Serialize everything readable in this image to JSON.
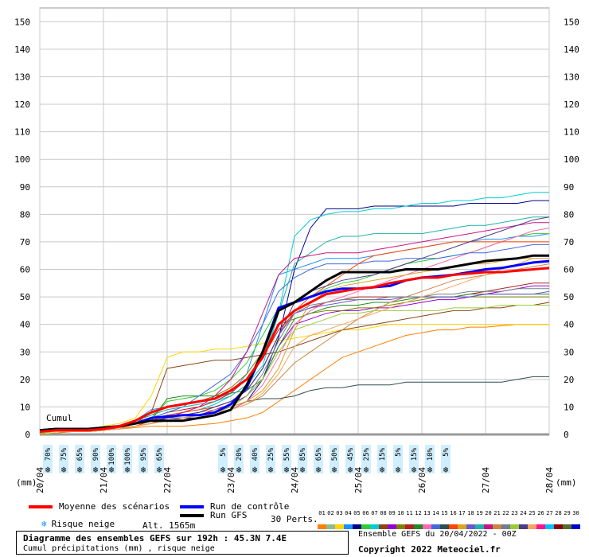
{
  "chart_data": {
    "type": "line",
    "title": "Diagramme des ensembles GEFS sur 192h : 45.3N 7.4E",
    "subtitle": "Cumul précipitations (mm) , risque neige",
    "ylabel": "(mm)",
    "ylim": [
      0,
      155
    ],
    "yticks": [
      0,
      10,
      20,
      30,
      40,
      50,
      60,
      70,
      80,
      90,
      100,
      110,
      120,
      130,
      140,
      150
    ],
    "x_unit_hours": true,
    "xlim": [
      0,
      192
    ],
    "xtick_labels": [
      {
        "label": "20/04",
        "x": 0
      },
      {
        "label": "21/04",
        "x": 24
      },
      {
        "label": "22/04",
        "x": 48
      },
      {
        "label": "23/04",
        "x": 72
      },
      {
        "label": "24/04",
        "x": 96
      },
      {
        "label": "25/04",
        "x": 120
      },
      {
        "label": "26/04",
        "x": 144
      },
      {
        "label": "27/04",
        "x": 168
      },
      {
        "label": "28/04",
        "x": 192
      }
    ],
    "cumul_label": "Cumul",
    "grid": true,
    "x": [
      0,
      6,
      12,
      18,
      24,
      30,
      36,
      42,
      48,
      54,
      60,
      66,
      72,
      78,
      84,
      90,
      96,
      102,
      108,
      114,
      120,
      126,
      132,
      138,
      144,
      150,
      156,
      162,
      168,
      174,
      180,
      186,
      192
    ],
    "series": [
      {
        "name": "Moyenne des scénarios",
        "color": "#ff0000",
        "width": 3,
        "values": [
          1,
          1.5,
          1.5,
          1.5,
          2,
          3,
          5,
          8,
          10,
          11,
          12,
          13,
          16,
          20,
          28,
          40,
          45,
          48,
          51,
          52,
          53,
          53.5,
          55,
          56,
          57,
          57,
          58,
          58.5,
          59,
          59,
          59.5,
          60,
          60.5
        ]
      },
      {
        "name": "Run de contrôle",
        "color": "#0000ff",
        "width": 3,
        "values": [
          1.5,
          2,
          2,
          2,
          2.5,
          3,
          4,
          6,
          6.5,
          7,
          7,
          8,
          11,
          17,
          30,
          46,
          48,
          50,
          52,
          53,
          53,
          53.5,
          54,
          56,
          57,
          57.5,
          58,
          59,
          60,
          60.5,
          61.5,
          62.5,
          63
        ]
      },
      {
        "name": "Run GFS",
        "color": "#000000",
        "width": 3,
        "values": [
          1.5,
          2,
          2,
          2,
          2.5,
          3,
          4,
          5,
          5,
          5,
          6,
          7,
          9,
          18,
          30,
          45,
          48,
          52,
          56,
          59,
          59,
          59,
          59,
          60,
          60,
          60,
          61,
          62,
          63,
          63.5,
          64,
          65,
          65
        ]
      }
    ],
    "members": [
      {
        "color": "#ff7f00",
        "values": [
          0,
          0.5,
          1,
          1.5,
          2,
          2,
          2.5,
          3,
          3,
          3,
          3.5,
          4,
          5,
          6,
          8,
          12,
          16,
          20,
          24,
          28,
          30,
          32,
          34,
          36,
          37,
          38,
          38,
          39,
          39,
          39.5,
          40,
          40,
          40
        ]
      },
      {
        "color": "#ffd700",
        "values": [
          0,
          0.5,
          1,
          2,
          3,
          4,
          6,
          14,
          28,
          30,
          30,
          31,
          31,
          32,
          33,
          34,
          35,
          36,
          37,
          38,
          38,
          39,
          40,
          40,
          40,
          40,
          40,
          40,
          40,
          40,
          40,
          40,
          40
        ]
      },
      {
        "color": "#1e90ff",
        "values": [
          1,
          2,
          2,
          2,
          2,
          3,
          5,
          9,
          10,
          11,
          12,
          13,
          15,
          22,
          40,
          58,
          60,
          62,
          64,
          64,
          64,
          65,
          66,
          67,
          68,
          69,
          70,
          70,
          71,
          71,
          72,
          72,
          73
        ]
      },
      {
        "color": "#00008b",
        "values": [
          1,
          2,
          2,
          2,
          2,
          3,
          4,
          5,
          6,
          6,
          6,
          7,
          9,
          12,
          20,
          35,
          60,
          75,
          82,
          82,
          82,
          83,
          83,
          83,
          83,
          83,
          83,
          84,
          84,
          84,
          84,
          85,
          85
        ]
      },
      {
        "color": "#32cd32",
        "values": [
          1,
          1,
          1,
          1,
          2,
          3,
          4,
          6,
          12,
          13,
          14,
          16,
          20,
          26,
          36,
          46,
          48,
          50,
          53,
          55,
          56,
          58,
          60,
          62,
          63,
          64,
          65,
          66,
          68,
          70,
          72,
          73,
          73
        ]
      },
      {
        "color": "#00ced1",
        "values": [
          1,
          1,
          1.5,
          2,
          2,
          3,
          4,
          6,
          7,
          8,
          9,
          11,
          14,
          18,
          25,
          44,
          72,
          78,
          80,
          81,
          81,
          82,
          82,
          83,
          84,
          84,
          85,
          85,
          86,
          86,
          87,
          88,
          88
        ]
      },
      {
        "color": "#8b4513",
        "values": [
          1,
          1,
          1,
          1,
          2,
          3,
          4,
          8,
          24,
          25,
          26,
          27,
          27,
          28,
          29,
          30,
          32,
          34,
          36,
          38,
          39,
          40,
          41,
          42,
          43,
          44,
          45,
          45,
          46,
          46,
          47,
          47,
          48
        ]
      },
      {
        "color": "#9400d3",
        "values": [
          1,
          1,
          1,
          1.5,
          2,
          2,
          3,
          4,
          5,
          6,
          7,
          9,
          11,
          14,
          20,
          32,
          40,
          42,
          44,
          45,
          45,
          46,
          46,
          47,
          48,
          49,
          49,
          50,
          51,
          52,
          53,
          54,
          54
        ]
      },
      {
        "color": "#808000",
        "values": [
          1,
          1,
          1,
          1.5,
          2,
          3,
          5,
          7,
          10,
          11,
          12,
          14,
          17,
          22,
          30,
          40,
          42,
          44,
          45,
          45,
          46,
          46,
          47,
          48,
          49,
          50,
          50,
          50,
          50,
          50,
          50,
          50,
          50
        ]
      },
      {
        "color": "#b22222",
        "values": [
          1,
          1,
          1,
          1,
          2,
          3,
          4,
          6,
          8,
          9,
          10,
          12,
          15,
          20,
          28,
          38,
          44,
          46,
          48,
          49,
          50,
          50,
          50,
          50,
          50,
          50,
          50,
          51,
          52,
          53,
          54,
          55,
          55
        ]
      },
      {
        "color": "#228b22",
        "values": [
          0.5,
          1,
          1,
          1,
          1.5,
          2,
          3,
          5,
          13,
          14,
          14,
          14,
          15,
          16,
          20,
          32,
          42,
          44,
          46,
          47,
          47,
          48,
          48,
          49,
          50,
          50,
          50,
          51,
          51,
          51,
          51,
          51,
          51
        ]
      },
      {
        "color": "#ff69b4",
        "values": [
          1,
          1,
          1,
          1,
          1.5,
          2,
          3,
          4,
          5,
          6,
          7,
          8,
          9,
          12,
          18,
          28,
          40,
          45,
          48,
          50,
          52,
          54,
          56,
          58,
          60,
          62,
          64,
          66,
          68,
          70,
          72,
          74,
          75
        ]
      },
      {
        "color": "#4169e1",
        "values": [
          1,
          1,
          1.5,
          2,
          2,
          3,
          4,
          6,
          8,
          10,
          14,
          18,
          22,
          30,
          40,
          52,
          57,
          60,
          62,
          62,
          62,
          63,
          63,
          64,
          64,
          64,
          65,
          66,
          66,
          67,
          68,
          69,
          69
        ]
      },
      {
        "color": "#2f4f4f",
        "values": [
          1,
          1,
          1,
          1,
          1.5,
          2,
          3,
          4,
          5,
          6,
          7,
          8,
          10,
          12,
          13,
          13,
          14,
          16,
          17,
          17,
          18,
          18,
          18,
          19,
          19,
          19,
          19,
          19,
          19,
          19,
          20,
          21,
          21
        ]
      },
      {
        "color": "#ff4500",
        "values": [
          1,
          1,
          1,
          1.5,
          2,
          2.5,
          3,
          5,
          7,
          8,
          9,
          10,
          12,
          16,
          24,
          36,
          45,
          50,
          54,
          58,
          62,
          65,
          66,
          67,
          68,
          69,
          70,
          70,
          70,
          70,
          70,
          70,
          70
        ]
      },
      {
        "color": "#daa520",
        "values": [
          0.5,
          1,
          1,
          1,
          1.5,
          2,
          3,
          4,
          6,
          7,
          8,
          9,
          10,
          12,
          16,
          24,
          38,
          48,
          52,
          54,
          55,
          56,
          57,
          58,
          59,
          60,
          61,
          62,
          62,
          63,
          64,
          64,
          64
        ]
      },
      {
        "color": "#6a5acd",
        "values": [
          1,
          1,
          1,
          1.5,
          2,
          3,
          4,
          5,
          6,
          7,
          8,
          10,
          12,
          16,
          24,
          36,
          44,
          46,
          47,
          48,
          49,
          49,
          49,
          50,
          50,
          50,
          50,
          50,
          51,
          51,
          51,
          51,
          52
        ]
      },
      {
        "color": "#20b2aa",
        "values": [
          1,
          1,
          1,
          1,
          2,
          3,
          5,
          7,
          9,
          10,
          11,
          12,
          14,
          18,
          28,
          44,
          62,
          66,
          70,
          72,
          72,
          73,
          73,
          73,
          73,
          74,
          75,
          76,
          76,
          77,
          78,
          79,
          79
        ]
      },
      {
        "color": "#c71585",
        "values": [
          1,
          1,
          1,
          1,
          1.5,
          2,
          3,
          4,
          6,
          8,
          10,
          14,
          20,
          30,
          44,
          58,
          64,
          65,
          66,
          66,
          66,
          67,
          68,
          69,
          70,
          71,
          72,
          73,
          74,
          75,
          76,
          77,
          77
        ]
      },
      {
        "color": "#cd853f",
        "values": [
          0,
          0.5,
          1,
          1,
          1.5,
          2,
          3,
          4,
          5,
          6,
          7,
          8,
          9,
          11,
          14,
          20,
          26,
          30,
          34,
          38,
          42,
          45,
          48,
          50,
          52,
          54,
          56,
          57,
          58,
          59,
          60,
          61,
          62
        ]
      },
      {
        "color": "#708090",
        "values": [
          1,
          1,
          1,
          1,
          1.5,
          2,
          3,
          4,
          5,
          6,
          7,
          8,
          10,
          14,
          22,
          34,
          44,
          47,
          48,
          49,
          49,
          49,
          50,
          50,
          50,
          51,
          51,
          52,
          52,
          52,
          53,
          53,
          53
        ]
      },
      {
        "color": "#9acd32",
        "values": [
          0.5,
          1,
          1,
          1,
          1.5,
          2,
          3,
          4,
          5,
          6,
          7,
          8,
          10,
          14,
          20,
          30,
          38,
          40,
          42,
          44,
          44,
          45,
          45,
          45,
          45,
          45,
          46,
          46,
          46,
          47,
          47,
          47,
          47
        ]
      },
      {
        "color": "#483d8b",
        "values": [
          1,
          1,
          1,
          1,
          2,
          3,
          4,
          5,
          6,
          7,
          8,
          10,
          12,
          16,
          24,
          36,
          48,
          52,
          54,
          56,
          57,
          58,
          60,
          62,
          64,
          66,
          68,
          70,
          72,
          74,
          76,
          78,
          79
        ]
      },
      {
        "color": "#f4a460",
        "values": [
          1,
          1,
          1,
          1,
          1.5,
          2,
          3,
          4,
          5,
          6,
          7,
          8,
          9,
          11,
          15,
          22,
          32,
          36,
          38,
          40,
          42,
          44,
          46,
          48,
          50,
          52,
          54,
          56,
          58,
          60,
          62,
          64,
          64
        ]
      }
    ],
    "snow_risk": [
      {
        "x": 3,
        "pct": "70%"
      },
      {
        "x": 9,
        "pct": "75%"
      },
      {
        "x": 15,
        "pct": "65%"
      },
      {
        "x": 21,
        "pct": "90%"
      },
      {
        "x": 27,
        "pct": "100%"
      },
      {
        "x": 33,
        "pct": "100%"
      },
      {
        "x": 39,
        "pct": "95%"
      },
      {
        "x": 45,
        "pct": "65%"
      },
      {
        "x": 69,
        "pct": "5%"
      },
      {
        "x": 75,
        "pct": "20%"
      },
      {
        "x": 81,
        "pct": "40%"
      },
      {
        "x": 87,
        "pct": "25%"
      },
      {
        "x": 93,
        "pct": "55%"
      },
      {
        "x": 99,
        "pct": "85%"
      },
      {
        "x": 105,
        "pct": "65%"
      },
      {
        "x": 111,
        "pct": "50%"
      },
      {
        "x": 117,
        "pct": "45%"
      },
      {
        "x": 123,
        "pct": "25%"
      },
      {
        "x": 129,
        "pct": "15%"
      },
      {
        "x": 135,
        "pct": "5%"
      },
      {
        "x": 141,
        "pct": "15%"
      },
      {
        "x": 147,
        "pct": "10%"
      },
      {
        "x": 153,
        "pct": "5%"
      }
    ]
  },
  "legend": {
    "mean": "Moyenne des scénarios",
    "control": "Run de contrôle",
    "gfs": "Run GFS",
    "snow": "Risque neige",
    "alt": "Alt. 1565m",
    "perts": "30 Perts.",
    "pert_numbers": [
      "01",
      "02",
      "03",
      "04",
      "05",
      "06",
      "07",
      "08",
      "09",
      "10",
      "11",
      "12",
      "13",
      "14",
      "15",
      "16",
      "17",
      "18",
      "19",
      "20",
      "21",
      "22",
      "23",
      "24",
      "25",
      "26",
      "27",
      "28",
      "29",
      "30"
    ],
    "pert_colors": [
      "#ff7f00",
      "#8fbc8f",
      "#ffd700",
      "#1e90ff",
      "#00008b",
      "#32cd32",
      "#00ced1",
      "#8b4513",
      "#9400d3",
      "#808000",
      "#b22222",
      "#228b22",
      "#ff69b4",
      "#4169e1",
      "#2f4f4f",
      "#ff4500",
      "#daa520",
      "#6a5acd",
      "#20b2aa",
      "#c71585",
      "#cd853f",
      "#708090",
      "#9acd32",
      "#483d8b",
      "#f4a460",
      "#ff1493",
      "#00bfff",
      "#8b0000",
      "#556b2f",
      "#0000cd"
    ]
  },
  "footer": {
    "title": "Diagramme des ensembles GEFS sur 192h : 45.3N 7.4E",
    "subtitle": "Cumul précipitations (mm) , risque neige",
    "run": "Ensemble GEFS du 20/04/2022 - 00Z",
    "copyright": "Copyright 2022 Meteociel.fr"
  }
}
